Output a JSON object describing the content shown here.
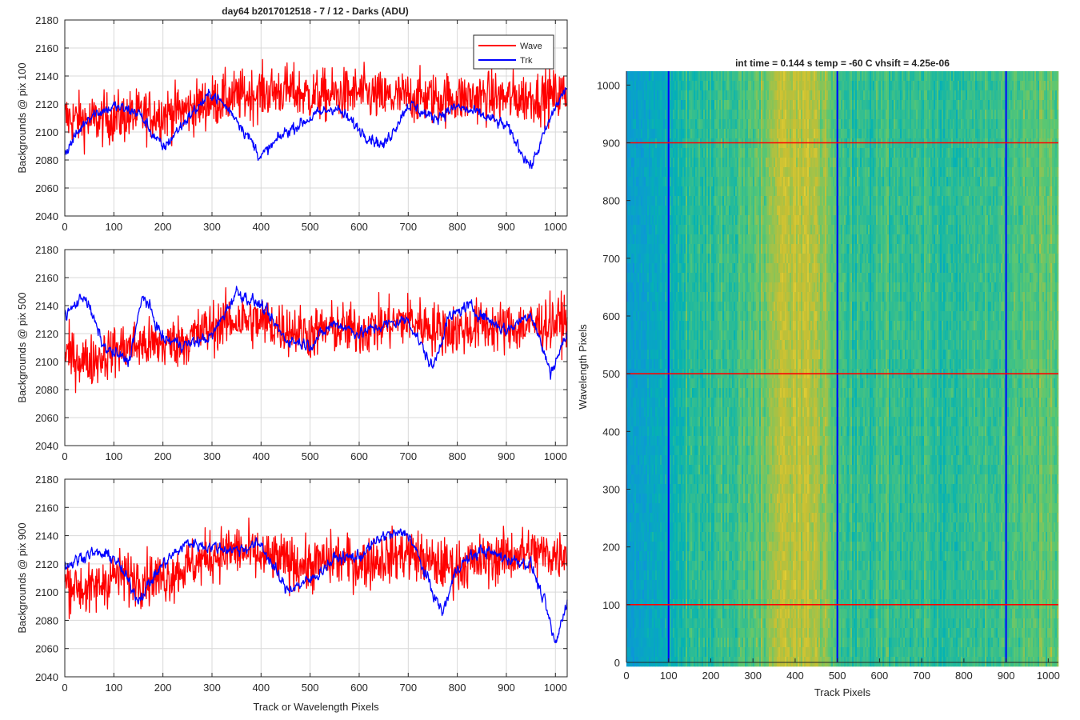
{
  "figure": {
    "left_title": "day64 b2017012518 - 7 / 12 - Darks (ADU)",
    "right_title": "int time = 0.144 s   temp = -60 C   vhsift = 4.25e-06"
  },
  "colors": {
    "wave": "#ff0000",
    "trk": "#0000ff",
    "grid": "#d9d9d9",
    "axis": "#262626"
  },
  "chart_data": [
    {
      "type": "line",
      "title": "day64 b2017012518 - 7 / 12 - Darks (ADU)",
      "xlabel": "",
      "ylabel": "Backgrounds @ pix 100",
      "xlim": [
        0,
        1024
      ],
      "ylim": [
        2040,
        2180
      ],
      "xticks": [
        0,
        100,
        200,
        300,
        400,
        500,
        600,
        700,
        800,
        900,
        1000
      ],
      "yticks": [
        2040,
        2060,
        2080,
        2100,
        2120,
        2140,
        2160,
        2180
      ],
      "grid": true,
      "legend": "top-right",
      "series": [
        {
          "name": "Wave",
          "color": "#ff0000",
          "x": [
            0,
            50,
            100,
            150,
            200,
            250,
            300,
            350,
            400,
            450,
            500,
            550,
            600,
            650,
            700,
            750,
            800,
            850,
            900,
            950,
            1000,
            1024
          ],
          "values": [
            2110,
            2108,
            2110,
            2112,
            2113,
            2116,
            2122,
            2125,
            2128,
            2130,
            2126,
            2126,
            2128,
            2124,
            2125,
            2124,
            2124,
            2125,
            2124,
            2125,
            2126,
            2128
          ]
        },
        {
          "name": "Trk",
          "color": "#0000ff",
          "x": [
            0,
            50,
            100,
            150,
            200,
            250,
            300,
            350,
            400,
            450,
            500,
            550,
            600,
            650,
            700,
            750,
            800,
            850,
            900,
            950,
            1000,
            1024
          ],
          "values": [
            2085,
            2112,
            2118,
            2114,
            2088,
            2110,
            2128,
            2110,
            2082,
            2100,
            2110,
            2118,
            2102,
            2090,
            2120,
            2110,
            2118,
            2112,
            2104,
            2075,
            2118,
            2132
          ]
        }
      ]
    },
    {
      "type": "line",
      "xlabel": "",
      "ylabel": "Backgrounds @ pix 500",
      "xlim": [
        0,
        1024
      ],
      "ylim": [
        2040,
        2180
      ],
      "xticks": [
        0,
        100,
        200,
        300,
        400,
        500,
        600,
        700,
        800,
        900,
        1000
      ],
      "yticks": [
        2040,
        2060,
        2080,
        2100,
        2120,
        2140,
        2160,
        2180
      ],
      "grid": true,
      "series": [
        {
          "name": "Wave",
          "color": "#ff0000",
          "x": [
            0,
            50,
            100,
            150,
            200,
            250,
            300,
            350,
            400,
            450,
            500,
            550,
            600,
            650,
            700,
            750,
            800,
            850,
            900,
            950,
            1000,
            1024
          ],
          "values": [
            2105,
            2100,
            2108,
            2112,
            2112,
            2116,
            2125,
            2130,
            2128,
            2124,
            2120,
            2124,
            2122,
            2126,
            2130,
            2124,
            2122,
            2126,
            2124,
            2126,
            2128,
            2130
          ]
        },
        {
          "name": "Trk",
          "color": "#0000ff",
          "x": [
            0,
            40,
            80,
            130,
            160,
            200,
            250,
            300,
            350,
            400,
            450,
            500,
            550,
            600,
            650,
            700,
            750,
            780,
            820,
            900,
            950,
            990,
            1024
          ],
          "values": [
            2132,
            2148,
            2110,
            2100,
            2148,
            2116,
            2112,
            2118,
            2150,
            2140,
            2116,
            2112,
            2128,
            2120,
            2126,
            2130,
            2095,
            2130,
            2140,
            2122,
            2135,
            2092,
            2120
          ]
        }
      ]
    },
    {
      "type": "line",
      "xlabel": "Track or Wavelength Pixels",
      "ylabel": "Backgrounds @ pix 900",
      "xlim": [
        0,
        1024
      ],
      "ylim": [
        2040,
        2180
      ],
      "xticks": [
        0,
        100,
        200,
        300,
        400,
        500,
        600,
        700,
        800,
        900,
        1000
      ],
      "yticks": [
        2040,
        2060,
        2080,
        2100,
        2120,
        2140,
        2160,
        2180
      ],
      "grid": true,
      "series": [
        {
          "name": "Wave",
          "color": "#ff0000",
          "x": [
            0,
            50,
            100,
            150,
            200,
            250,
            300,
            350,
            400,
            450,
            500,
            550,
            600,
            650,
            700,
            750,
            800,
            850,
            900,
            950,
            1000,
            1024
          ],
          "values": [
            2108,
            2100,
            2112,
            2110,
            2110,
            2118,
            2126,
            2130,
            2125,
            2122,
            2118,
            2124,
            2120,
            2124,
            2128,
            2120,
            2118,
            2122,
            2126,
            2128,
            2126,
            2130
          ]
        },
        {
          "name": "Trk",
          "color": "#0000ff",
          "x": [
            0,
            50,
            100,
            150,
            200,
            250,
            300,
            350,
            400,
            450,
            500,
            550,
            600,
            650,
            700,
            750,
            770,
            800,
            850,
            900,
            950,
            980,
            1000,
            1024
          ],
          "values": [
            2118,
            2128,
            2125,
            2095,
            2120,
            2135,
            2132,
            2130,
            2134,
            2102,
            2108,
            2124,
            2125,
            2140,
            2142,
            2100,
            2085,
            2118,
            2130,
            2124,
            2120,
            2090,
            2062,
            2095
          ]
        }
      ]
    },
    {
      "type": "heatmap",
      "title": "int time = 0.144 s   temp = -60 C   vhsift = 4.25e-06",
      "xlabel": "Track Pixels",
      "ylabel": "Wavelength Pixels",
      "xlim": [
        0,
        1024
      ],
      "ylim": [
        0,
        1024
      ],
      "xticks": [
        0,
        100,
        200,
        300,
        400,
        500,
        600,
        700,
        800,
        900,
        1000
      ],
      "yticks": [
        0,
        100,
        200,
        300,
        400,
        500,
        600,
        700,
        800,
        900,
        1000
      ],
      "colormap": "parula",
      "column_profile": {
        "x": [
          0,
          50,
          100,
          150,
          200,
          250,
          300,
          350,
          400,
          450,
          500,
          550,
          600,
          650,
          700,
          750,
          800,
          850,
          900,
          950,
          1000,
          1024
        ],
        "level": [
          0.35,
          0.38,
          0.42,
          0.48,
          0.5,
          0.52,
          0.56,
          0.66,
          0.72,
          0.66,
          0.54,
          0.5,
          0.52,
          0.5,
          0.52,
          0.5,
          0.5,
          0.52,
          0.52,
          0.56,
          0.58,
          0.56
        ]
      },
      "horizontal_markers": {
        "color": "#ff0000",
        "y": [
          100,
          500,
          900
        ]
      },
      "vertical_markers": {
        "color": "#0000ff",
        "x": [
          100,
          500,
          900
        ]
      }
    }
  ]
}
